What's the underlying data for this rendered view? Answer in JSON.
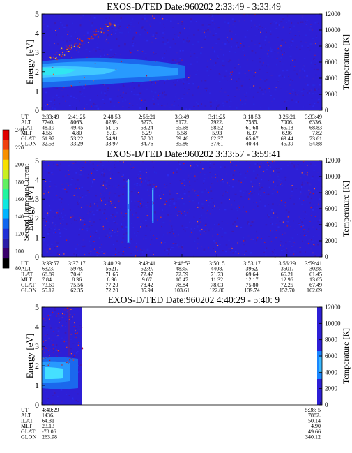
{
  "chart_data": [
    {
      "type": "heatmap",
      "title": "EXOS-D/TED   Date:960202  2:33:49 - 3:33:49",
      "ylabel": "Energy [eV]",
      "ylim": [
        0,
        5
      ],
      "y_ticks": [
        "0",
        "1",
        "2",
        "3",
        "4",
        "5"
      ],
      "right_label": "Temperature [K]",
      "right_ylim": [
        0,
        12000
      ],
      "right_ticks": [
        "0",
        "2000",
        "4000",
        "6000",
        "8000",
        "10000",
        "12000"
      ],
      "row_labels": [
        "UT",
        "ALT",
        "ILAT",
        "MLT",
        "GLAT",
        "GLON"
      ],
      "columns": [
        [
          "2:33:49",
          "7740.",
          "48.19",
          "4.56",
          "51.97",
          "32.53"
        ],
        [
          "2:41:25",
          "8063.",
          "49.45",
          "4.80",
          "53.22",
          "33.29"
        ],
        [
          "2:48:53",
          "8239.",
          "51.15",
          "5.03",
          "54.91",
          "33.97"
        ],
        [
          "2:56:21",
          "8275.",
          "53.24",
          "5.29",
          "57.00",
          "34.76"
        ],
        [
          "3:3:49",
          "8172.",
          "55.68",
          "5.58",
          "59.46",
          "35.86"
        ],
        [
          "3:11:25",
          "7922.",
          "58.52",
          "5.93",
          "62.37",
          "37.61"
        ],
        [
          "3:18:53",
          "7535.",
          "61.68",
          "6.37",
          "65.67",
          "40.44"
        ],
        [
          "3:26:21",
          "7006.",
          "65.18",
          "6.96",
          "69.44",
          "45.39"
        ],
        [
          "3:33:49",
          "6336.",
          "68.83",
          "7.82",
          "73.61",
          "54.88"
        ]
      ]
    },
    {
      "type": "heatmap",
      "title": "EXOS-D/TED   Date:960202  3:33:57 - 3:59:41",
      "ylabel": "Energy [eV]",
      "ylim": [
        0,
        5
      ],
      "y_ticks": [
        "0",
        "1",
        "2",
        "3",
        "4",
        "5"
      ],
      "right_label": "Temperature [K]",
      "right_ylim": [
        0,
        12000
      ],
      "right_ticks": [
        "0",
        "2000",
        "4000",
        "6000",
        "8000",
        "10000",
        "12000"
      ],
      "row_labels": [
        "UT",
        "ALT",
        "ILAT",
        "MLT",
        "GLAT",
        "GLON"
      ],
      "columns": [
        [
          "3:33:57",
          "6323.",
          "68.89",
          "7.84",
          "73.69",
          "55.12"
        ],
        [
          "3:37:17",
          "5978.",
          "70.41",
          "8.36",
          "75.56",
          "62.35"
        ],
        [
          "3:40:29",
          "5621.",
          "71.65",
          "8.96",
          "77.20",
          "72.20"
        ],
        [
          "3:43:41",
          "5239.",
          "72.47",
          "9.67",
          "78.42",
          "85.94"
        ],
        [
          "3:46:53",
          "4835.",
          "72.59",
          "10.47",
          "78.84",
          "103.61"
        ],
        [
          "3:50: 5",
          "4408.",
          "71.73",
          "11.32",
          "78.03",
          "122.80"
        ],
        [
          "3:53:17",
          "3962.",
          "69.64",
          "12.17",
          "75.80",
          "139.74"
        ],
        [
          "3:56:29",
          "3501.",
          "66.21",
          "12.96",
          "72.25",
          "152.70"
        ],
        [
          "3:59:41",
          "3028.",
          "61.45",
          "13.65",
          "67.49",
          "162.09"
        ]
      ]
    },
    {
      "type": "heatmap",
      "title": "EXOS-D/TED   Date:960202  4:40:29 - 5:40: 9",
      "ylabel": "Energy [eV]",
      "ylim": [
        0,
        5
      ],
      "y_ticks": [
        "0",
        "1",
        "2",
        "3",
        "4",
        "5"
      ],
      "right_label": "Temperature [K]",
      "right_ylim": [
        0,
        12000
      ],
      "right_ticks": [
        "0",
        "2000",
        "4000",
        "6000",
        "8000",
        "10000",
        "12000"
      ],
      "row_labels": [
        "UT",
        "ALT",
        "ILAT",
        "MLT",
        "GLAT",
        "GLON"
      ],
      "columns": [
        [
          "4:40:29",
          "1436.",
          "64.31",
          "23.13",
          "-78.06",
          "263.98"
        ],
        [
          "5:38: 5",
          "7882.",
          "50.14",
          "4.90",
          "49.66",
          "340.12"
        ]
      ]
    }
  ],
  "colorbar": {
    "label": "Second Harmonic Current",
    "ticks": [
      "80",
      "100",
      "120",
      "140",
      "160",
      "180",
      "200",
      "220",
      "240"
    ],
    "colors": [
      "#000000",
      "#3a006b",
      "#2a1ca8",
      "#1f2fd6",
      "#1066f0",
      "#00b4ff",
      "#10e8e0",
      "#20f5a0",
      "#60f060",
      "#c8f020",
      "#f8e000",
      "#f89000",
      "#f04010",
      "#e00000"
    ]
  },
  "colors": {
    "background_field": "#2d1fd6",
    "band": "#1a86ff",
    "band_core": "#3ab8ff",
    "speck": "#c81e1e"
  }
}
